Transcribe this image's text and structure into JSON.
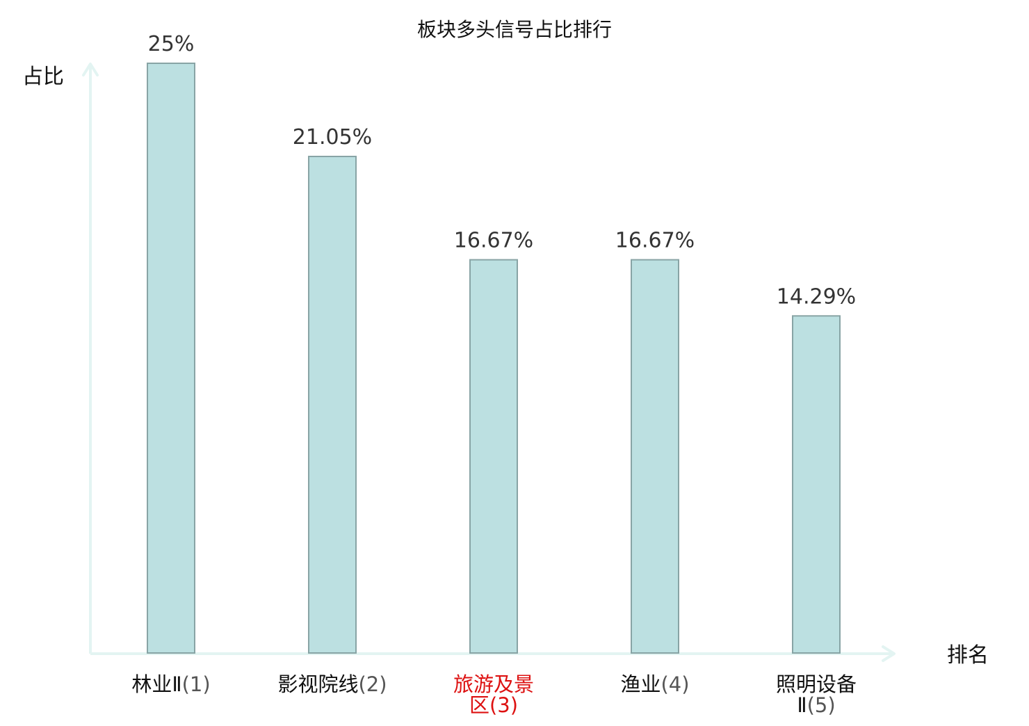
{
  "chart_data": {
    "type": "bar",
    "title": "板块多头信号占比排行",
    "ylabel": "占比",
    "xlabel": "排名",
    "categories": [
      "林业Ⅱ(1)",
      "影视院线(2)",
      "旅游及景区(3)",
      "渔业(4)",
      "照明设备Ⅱ(5)"
    ],
    "category_lines": [
      [
        {
          "name": "林业Ⅱ",
          "rank": "(1)"
        }
      ],
      [
        {
          "name": "影视院线",
          "rank": "(2)"
        }
      ],
      [
        {
          "name": "旅游及景",
          "rank": ""
        },
        {
          "name": "区",
          "rank": "(3)"
        }
      ],
      [
        {
          "name": "渔业",
          "rank": "(4)"
        }
      ],
      [
        {
          "name": "照明设备",
          "rank": ""
        },
        {
          "name": "Ⅱ",
          "rank": "(5)"
        }
      ]
    ],
    "values": [
      25,
      21.05,
      16.67,
      16.67,
      14.29
    ],
    "value_labels": [
      "25%",
      "21.05%",
      "16.67%",
      "16.67%",
      "14.29%"
    ],
    "highlight_index": 2,
    "ylim": [
      0,
      25
    ],
    "grid": false,
    "legend": "none",
    "colors": {
      "bar_fill": "#bce0e1",
      "bar_stroke": "#88a4a5",
      "axis": "#e3f4f2",
      "text": "#333333",
      "label": "#111111",
      "rank": "#555555",
      "highlight": "#dd1111"
    }
  }
}
